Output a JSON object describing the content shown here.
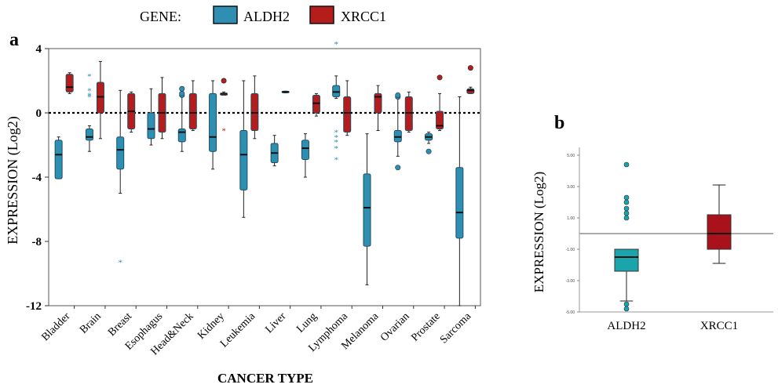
{
  "legend": {
    "title": "GENE:",
    "entries": [
      {
        "label": "ALDH2",
        "color": "#2f8fb3"
      },
      {
        "label": "XRCC1",
        "color": "#b51c1c"
      }
    ]
  },
  "panel_a": {
    "letter": "a"
  },
  "panel_b": {
    "letter": "b"
  },
  "chart_data": [
    {
      "type": "box",
      "panel": "a",
      "ylabel": "EXPRESSION (Log2)",
      "xlabel": "CANCER TYPE",
      "ylim": [
        -12,
        4
      ],
      "yticks": [
        4,
        0,
        -4,
        -8,
        -12
      ],
      "ytick_labels": [
        "4",
        "0",
        "-4",
        "-8",
        "-12"
      ],
      "reference_line": 0,
      "categories": [
        "Bladder",
        "Brain",
        "Breast",
        "Esophagus",
        "Head&Neck",
        "Kidney",
        "Leukemia",
        "Liver",
        "Lung",
        "Lymphoma",
        "Melanoma",
        "Ovarian",
        "Prostate",
        "Sarcoma"
      ],
      "series": [
        {
          "name": "ALDH2",
          "color": "#2f8fb3",
          "boxes": [
            {
              "min": -4.1,
              "q1": -4.1,
              "median": -2.6,
              "q3": -1.7,
              "max": -1.5,
              "outliers": []
            },
            {
              "min": -2.4,
              "q1": -1.7,
              "median": -1.5,
              "q3": -1.0,
              "max": -0.8,
              "outliers": [
                1.0,
                1.1,
                1.4,
                2.3
              ]
            },
            {
              "min": -5.0,
              "q1": -3.5,
              "median": -2.3,
              "q3": -1.5,
              "max": 1.4,
              "outliers": [
                -9.3
              ]
            },
            {
              "min": -2.0,
              "q1": -1.6,
              "median": -1.0,
              "q3": 0.0,
              "max": 1.5,
              "outliers": []
            },
            {
              "min": -2.4,
              "q1": -1.8,
              "median": -1.2,
              "q3": -1.0,
              "max": 1.2,
              "outliers": [
                1.1,
                1.2,
                1.5
              ]
            },
            {
              "min": -3.5,
              "q1": -2.4,
              "median": -1.5,
              "q3": 1.2,
              "max": 2.0,
              "outliers": []
            },
            {
              "min": -6.5,
              "q1": -4.8,
              "median": -2.6,
              "q3": -1.1,
              "max": 2.0,
              "outliers": []
            },
            {
              "min": -3.3,
              "q1": -3.1,
              "median": -2.5,
              "q3": -1.9,
              "max": -1.4,
              "outliers": []
            },
            {
              "min": -4.0,
              "q1": -2.9,
              "median": -2.2,
              "q3": -1.7,
              "max": -1.3,
              "outliers": []
            },
            {
              "min": 0.9,
              "q1": 1.0,
              "median": 1.3,
              "q3": 1.7,
              "max": 2.3,
              "outliers": [
                4.3,
                -1.2,
                -1.5,
                -1.8,
                -2.2,
                -2.9
              ]
            },
            {
              "min": -10.7,
              "q1": -8.3,
              "median": -5.9,
              "q3": -3.8,
              "max": -1.3,
              "outliers": []
            },
            {
              "min": -2.7,
              "q1": -1.8,
              "median": -1.5,
              "q3": -1.1,
              "max": 1.2,
              "outliers": [
                -3.4,
                1.0,
                1.1
              ]
            },
            {
              "min": -1.9,
              "q1": -1.7,
              "median": -1.5,
              "q3": -1.3,
              "max": -1.2,
              "outliers": [
                -2.4
              ]
            },
            {
              "min": -12.0,
              "q1": -7.8,
              "median": -6.2,
              "q3": -3.4,
              "max": 1.0,
              "outliers": []
            }
          ]
        },
        {
          "name": "XRCC1",
          "color": "#b51c1c",
          "boxes": [
            {
              "min": 1.2,
              "q1": 1.3,
              "median": 1.6,
              "q3": 2.4,
              "max": 2.5,
              "outliers": []
            },
            {
              "min": -1.6,
              "q1": 0.0,
              "median": 1.0,
              "q3": 1.9,
              "max": 3.2,
              "outliers": []
            },
            {
              "min": -1.2,
              "q1": -1.0,
              "median": 0.1,
              "q3": 1.2,
              "max": 1.3,
              "outliers": []
            },
            {
              "min": -1.6,
              "q1": -1.2,
              "median": 0.0,
              "q3": 1.2,
              "max": 2.2,
              "outliers": []
            },
            {
              "min": -1.1,
              "q1": -1.0,
              "median": 0.0,
              "q3": 1.2,
              "max": 2.0,
              "outliers": []
            },
            {
              "min": 1.1,
              "q1": 1.1,
              "median": 1.2,
              "q3": 1.2,
              "max": 1.3,
              "outliers": [
                2.0,
                -1.1
              ]
            },
            {
              "min": -1.6,
              "q1": -1.1,
              "median": 0.0,
              "q3": 1.2,
              "max": 2.3,
              "outliers": []
            },
            {
              "min": 1.25,
              "q1": 1.25,
              "median": 1.3,
              "q3": 1.35,
              "max": 1.35,
              "outliers": []
            },
            {
              "min": -0.2,
              "q1": 0.0,
              "median": 0.6,
              "q3": 1.1,
              "max": 1.2,
              "outliers": []
            },
            {
              "min": -1.4,
              "q1": -1.2,
              "median": 0.0,
              "q3": 1.0,
              "max": 2.0,
              "outliers": []
            },
            {
              "min": -1.1,
              "q1": 0.0,
              "median": 1.0,
              "q3": 1.2,
              "max": 1.7,
              "outliers": []
            },
            {
              "min": -1.2,
              "q1": -1.1,
              "median": 0.0,
              "q3": 1.0,
              "max": 1.3,
              "outliers": []
            },
            {
              "min": -1.1,
              "q1": -1.0,
              "median": -0.8,
              "q3": 0.1,
              "max": 1.2,
              "outliers": [
                2.2
              ]
            },
            {
              "min": 1.2,
              "q1": 1.2,
              "median": 1.4,
              "q3": 1.5,
              "max": 1.6,
              "outliers": [
                2.8
              ]
            }
          ]
        }
      ]
    },
    {
      "type": "box",
      "panel": "b",
      "ylabel": "EXPRESSION (Log2)",
      "ylim": [
        -5,
        5.5
      ],
      "yticks": [
        5,
        3,
        1,
        -1,
        -3,
        -5
      ],
      "ytick_labels": [
        "5.00",
        "3.00",
        "1.00",
        "-1.00",
        "-3.00",
        "-5.00"
      ],
      "reference_line": 0,
      "categories": [
        "ALDH2",
        "XRCC1"
      ],
      "series": [
        {
          "name": "ALDH2",
          "color": "#1aa5ad",
          "box": {
            "min": -4.3,
            "q1": -2.4,
            "median": -1.5,
            "q3": -1.0,
            "max": -1.0,
            "outliers": [
              1.0,
              1.3,
              1.6,
              2.0,
              2.3,
              -4.5,
              -4.8,
              4.4
            ]
          }
        },
        {
          "name": "XRCC1",
          "color": "#a9121a",
          "box": {
            "min": -1.9,
            "q1": -1.0,
            "median": 0.0,
            "q3": 1.2,
            "max": 3.1,
            "outliers": []
          }
        }
      ]
    }
  ]
}
